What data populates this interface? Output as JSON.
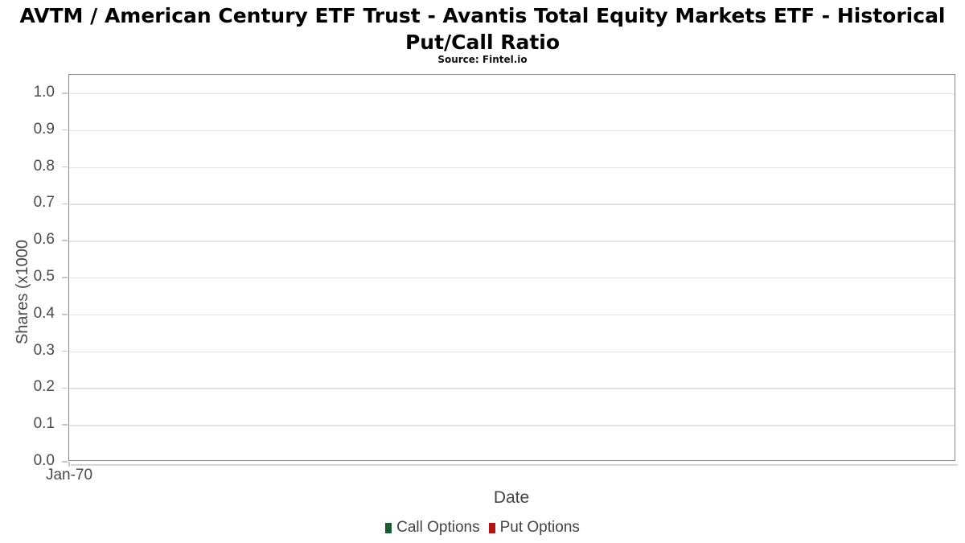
{
  "title_lines": [
    "AVTM / American Century ETF Trust - Avantis Total Equity Markets ETF - Historical",
    "Put/Call Ratio"
  ],
  "subtitle": "Source: Fintel.io",
  "axes": {
    "x_title": "Date",
    "y_title": "Shares (x1000",
    "x_tick_label": "Jan-70"
  },
  "legend": {
    "items": [
      {
        "label": "Call Options",
        "color": "#1e5a30"
      },
      {
        "label": "Put Options",
        "color": "#b21212"
      }
    ]
  },
  "chart_data": {
    "type": "line",
    "title": "AVTM / American Century ETF Trust - Avantis Total Equity Markets ETF - Historical Put/Call Ratio",
    "subtitle": "Source: Fintel.io",
    "xlabel": "Date",
    "ylabel": "Shares (x1000",
    "x_tick_labels": [
      "Jan-70"
    ],
    "y_tick_labels": [
      "0.0",
      "0.1",
      "0.2",
      "0.3",
      "0.4",
      "0.5",
      "0.6",
      "0.7",
      "0.8",
      "0.9",
      "1.0"
    ],
    "ylim": [
      0,
      1.05
    ],
    "grid": true,
    "grid_color": "#e3e3e3",
    "legend_position": "bottom",
    "series": [
      {
        "name": "Call Options",
        "color": "#1e5a30",
        "values": []
      },
      {
        "name": "Put Options",
        "color": "#b21212",
        "values": []
      }
    ]
  }
}
